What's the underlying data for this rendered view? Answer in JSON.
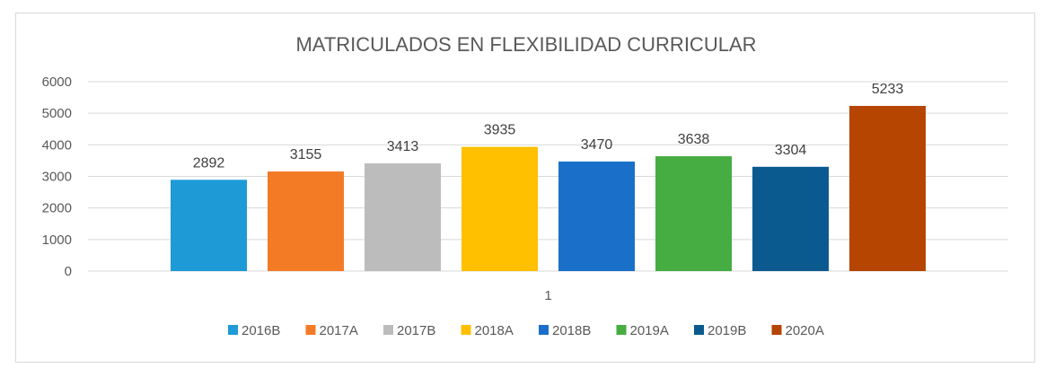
{
  "chart_data": {
    "type": "bar",
    "title": "MATRICULADOS EN FLEXIBILIDAD CURRICULAR",
    "xlabel": "",
    "ylabel": "",
    "categories": [
      "1"
    ],
    "ylim": [
      0,
      6000
    ],
    "yticks": [
      0,
      1000,
      2000,
      3000,
      4000,
      5000,
      6000
    ],
    "grid": true,
    "legend_position": "bottom",
    "series": [
      {
        "name": "2016B",
        "values": [
          2892
        ],
        "color": "#1e9ad6"
      },
      {
        "name": "2017A",
        "values": [
          3155
        ],
        "color": "#f47b26"
      },
      {
        "name": "2017B",
        "values": [
          3413
        ],
        "color": "#bcbcbc"
      },
      {
        "name": "2018A",
        "values": [
          3935
        ],
        "color": "#ffc000"
      },
      {
        "name": "2018B",
        "values": [
          3470
        ],
        "color": "#1a70c9"
      },
      {
        "name": "2019A",
        "values": [
          3638
        ],
        "color": "#46ad42"
      },
      {
        "name": "2019B",
        "values": [
          3304
        ],
        "color": "#0b5a8f"
      },
      {
        "name": "2020A",
        "values": [
          5233
        ],
        "color": "#b54500"
      }
    ]
  }
}
